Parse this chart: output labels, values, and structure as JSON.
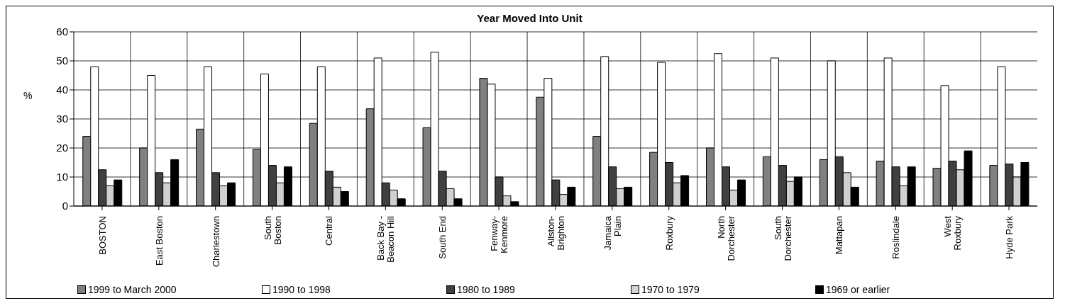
{
  "chart_data": {
    "type": "bar",
    "title": "Year Moved Into Unit",
    "ylabel": "%",
    "categories": [
      "BOSTON",
      "East Boston",
      "Charlestown",
      "South Boston",
      "Central",
      "Back Bay - Beacon Hill",
      "South End",
      "Fenway-Kenmore",
      "Allston-Brighton",
      "Jamaica Plain",
      "Roxbury",
      "North Dorchester",
      "South Dorchester",
      "Mattapan",
      "Roslindale",
      "West Roxbury",
      "Hyde Park"
    ],
    "series": [
      {
        "name": "1999 to March 2000",
        "color": "#808080",
        "values": [
          24,
          20,
          26.5,
          19.5,
          28.5,
          33.5,
          27,
          44,
          37.5,
          24,
          18.5,
          20,
          17,
          16,
          15.5,
          13,
          14
        ]
      },
      {
        "name": "1990 to 1998",
        "color": "#ffffff",
        "values": [
          48,
          45,
          48,
          45.5,
          48,
          51,
          53,
          42,
          44,
          51.5,
          49.5,
          52.5,
          51,
          50,
          51,
          41.5,
          48
        ]
      },
      {
        "name": "1980 to 1989",
        "color": "#404040",
        "values": [
          12.5,
          11.5,
          11.5,
          14,
          12,
          8,
          12,
          10,
          9,
          13.5,
          15,
          13.5,
          14,
          17,
          13.5,
          15.5,
          14.5
        ]
      },
      {
        "name": "1970 to 1979",
        "color": "#d0d0d0",
        "values": [
          7,
          8,
          7,
          8,
          6.5,
          5.5,
          6,
          3.5,
          4,
          6,
          8,
          5.5,
          8.5,
          11.5,
          7,
          12.5,
          10
        ]
      },
      {
        "name": "1969 or earlier",
        "color": "#000000",
        "values": [
          9,
          16,
          8,
          13.5,
          5,
          2.5,
          2.5,
          1.5,
          6.5,
          6.5,
          10.5,
          9,
          10,
          6.5,
          13.5,
          19,
          15
        ]
      }
    ],
    "ylim": [
      0,
      60
    ],
    "yticks": [
      0,
      10,
      20,
      30,
      40,
      50,
      60
    ],
    "grid": true,
    "legend": "bottom"
  }
}
